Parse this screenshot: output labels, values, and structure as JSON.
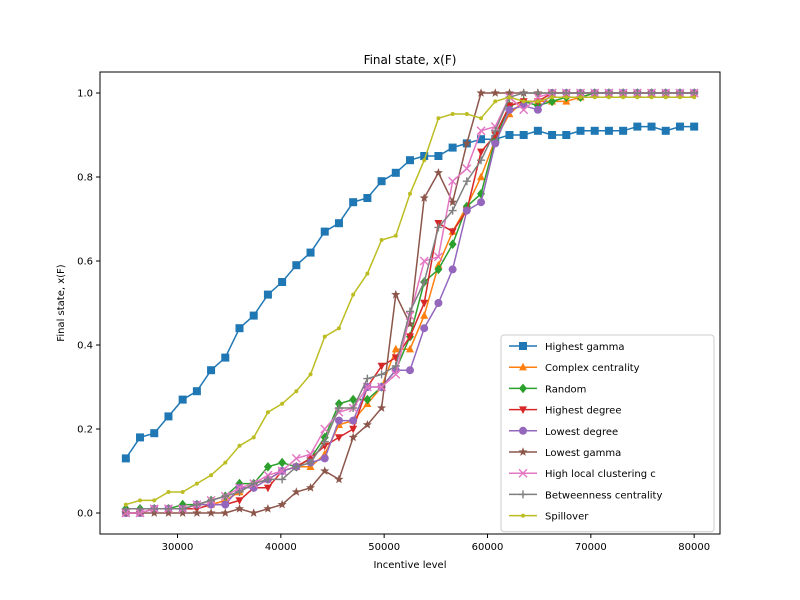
{
  "chart_data": {
    "type": "line",
    "title": "Final state, x(F)",
    "xlabel": "Incentive level",
    "ylabel": "Final state, x(F)",
    "xlim": [
      22500,
      82500
    ],
    "ylim": [
      -0.05,
      1.05
    ],
    "xticks": [
      30000,
      40000,
      50000,
      60000,
      70000,
      80000
    ],
    "yticks": [
      0.0,
      0.2,
      0.4,
      0.6,
      0.8,
      1.0
    ],
    "xtick_labels": [
      "30000",
      "40000",
      "50000",
      "60000",
      "70000",
      "80000"
    ],
    "ytick_labels": [
      "0.0",
      "0.2",
      "0.4",
      "0.6",
      "0.8",
      "1.0"
    ],
    "grid": false,
    "legend_position": "lower-right",
    "x": [
      25000,
      26375,
      27750,
      29125,
      30500,
      31875,
      33250,
      34625,
      36000,
      37375,
      38750,
      40125,
      41500,
      42875,
      44250,
      45625,
      47000,
      48375,
      49750,
      51125,
      52500,
      53875,
      55250,
      56625,
      58000,
      59375,
      60750,
      62125,
      63500,
      64875,
      66250,
      67625,
      69000,
      70375,
      71750,
      73125,
      74500,
      75875,
      77250,
      78625,
      80000
    ],
    "series": [
      {
        "name": "Highest gamma",
        "color": "#1f77b4",
        "marker": "square",
        "values": [
          0.13,
          0.18,
          0.19,
          0.23,
          0.27,
          0.29,
          0.34,
          0.37,
          0.44,
          0.47,
          0.52,
          0.55,
          0.59,
          0.62,
          0.67,
          0.69,
          0.74,
          0.75,
          0.79,
          0.81,
          0.84,
          0.85,
          0.85,
          0.87,
          0.88,
          0.89,
          0.89,
          0.9,
          0.9,
          0.91,
          0.9,
          0.9,
          0.91,
          0.91,
          0.91,
          0.91,
          0.92,
          0.92,
          0.91,
          0.92,
          0.92
        ]
      },
      {
        "name": "Complex centrality",
        "color": "#ff7f0e",
        "marker": "triangle-up",
        "values": [
          0.0,
          0.0,
          0.01,
          0.01,
          0.01,
          0.02,
          0.02,
          0.03,
          0.05,
          0.07,
          0.08,
          0.1,
          0.11,
          0.11,
          0.14,
          0.21,
          0.22,
          0.26,
          0.3,
          0.39,
          0.39,
          0.47,
          0.59,
          0.67,
          0.73,
          0.8,
          0.89,
          0.95,
          0.98,
          0.98,
          0.98,
          0.98,
          0.99,
          1.0,
          1.0,
          1.0,
          1.0,
          1.0,
          1.0,
          1.0,
          1.0
        ]
      },
      {
        "name": "Random",
        "color": "#2ca02c",
        "marker": "diamond",
        "values": [
          0.01,
          0.01,
          0.01,
          0.01,
          0.02,
          0.02,
          0.03,
          0.04,
          0.07,
          0.07,
          0.11,
          0.12,
          0.11,
          0.13,
          0.18,
          0.26,
          0.27,
          0.27,
          0.3,
          0.34,
          0.42,
          0.55,
          0.58,
          0.64,
          0.73,
          0.76,
          0.89,
          0.97,
          0.98,
          0.97,
          0.98,
          0.99,
          0.99,
          1.0,
          1.0,
          1.0,
          1.0,
          1.0,
          1.0,
          1.0,
          1.0
        ]
      },
      {
        "name": "Highest degree",
        "color": "#d62728",
        "marker": "triangle-down",
        "values": [
          0.0,
          0.0,
          0.01,
          0.01,
          0.01,
          0.01,
          0.02,
          0.02,
          0.03,
          0.06,
          0.06,
          0.1,
          0.11,
          0.13,
          0.16,
          0.18,
          0.2,
          0.3,
          0.35,
          0.37,
          0.42,
          0.5,
          0.69,
          0.67,
          0.72,
          0.86,
          0.9,
          0.97,
          0.98,
          0.98,
          1.0,
          1.0,
          1.0,
          1.0,
          1.0,
          1.0,
          1.0,
          1.0,
          1.0,
          1.0,
          1.0
        ]
      },
      {
        "name": "Lowest degree",
        "color": "#9467bd",
        "marker": "circle",
        "values": [
          0.0,
          0.0,
          0.01,
          0.01,
          0.01,
          0.02,
          0.02,
          0.02,
          0.06,
          0.06,
          0.08,
          0.1,
          0.11,
          0.12,
          0.13,
          0.22,
          0.22,
          0.3,
          0.3,
          0.34,
          0.34,
          0.44,
          0.5,
          0.58,
          0.72,
          0.74,
          0.88,
          0.96,
          0.97,
          0.96,
          1.0,
          1.0,
          1.0,
          1.0,
          1.0,
          1.0,
          1.0,
          1.0,
          1.0,
          1.0,
          1.0
        ]
      },
      {
        "name": "Lowest gamma",
        "color": "#8c564b",
        "marker": "star",
        "values": [
          0.0,
          0.0,
          0.0,
          0.0,
          0.0,
          0.0,
          0.0,
          0.0,
          0.01,
          0.0,
          0.01,
          0.02,
          0.05,
          0.06,
          0.1,
          0.08,
          0.18,
          0.21,
          0.25,
          0.52,
          0.45,
          0.75,
          0.81,
          0.74,
          0.88,
          1.0,
          1.0,
          1.0,
          1.0,
          1.0,
          1.0,
          1.0,
          1.0,
          1.0,
          1.0,
          1.0,
          1.0,
          1.0,
          1.0,
          1.0,
          1.0
        ]
      },
      {
        "name": "High local clustering c",
        "color": "#e377c2",
        "marker": "x",
        "values": [
          0.0,
          0.0,
          0.01,
          0.01,
          0.01,
          0.02,
          0.03,
          0.04,
          0.06,
          0.07,
          0.09,
          0.1,
          0.13,
          0.14,
          0.2,
          0.24,
          0.25,
          0.3,
          0.3,
          0.33,
          0.47,
          0.6,
          0.61,
          0.79,
          0.82,
          0.91,
          0.92,
          0.99,
          0.96,
          0.99,
          1.0,
          1.0,
          1.0,
          1.0,
          1.0,
          1.0,
          1.0,
          1.0,
          1.0,
          1.0,
          1.0
        ]
      },
      {
        "name": "Betweenness centrality",
        "color": "#7f7f7f",
        "marker": "plus",
        "values": [
          0.01,
          0.01,
          0.01,
          0.01,
          0.01,
          0.02,
          0.03,
          0.04,
          0.05,
          0.07,
          0.08,
          0.08,
          0.11,
          0.12,
          0.17,
          0.25,
          0.25,
          0.32,
          0.33,
          0.35,
          0.48,
          0.55,
          0.68,
          0.72,
          0.79,
          0.84,
          0.91,
          0.99,
          1.0,
          1.0,
          1.0,
          1.0,
          1.0,
          1.0,
          1.0,
          1.0,
          1.0,
          1.0,
          1.0,
          1.0,
          1.0
        ]
      },
      {
        "name": "Spillover",
        "color": "#bcbd22",
        "marker": "point",
        "values": [
          0.02,
          0.03,
          0.03,
          0.05,
          0.05,
          0.07,
          0.09,
          0.12,
          0.16,
          0.18,
          0.24,
          0.26,
          0.29,
          0.33,
          0.42,
          0.44,
          0.52,
          0.57,
          0.65,
          0.66,
          0.76,
          0.84,
          0.94,
          0.95,
          0.95,
          0.94,
          0.98,
          0.99,
          0.98,
          0.98,
          0.99,
          0.99,
          0.99,
          0.99,
          0.99,
          0.99,
          0.99,
          0.99,
          0.99,
          0.99,
          0.99
        ]
      }
    ]
  }
}
